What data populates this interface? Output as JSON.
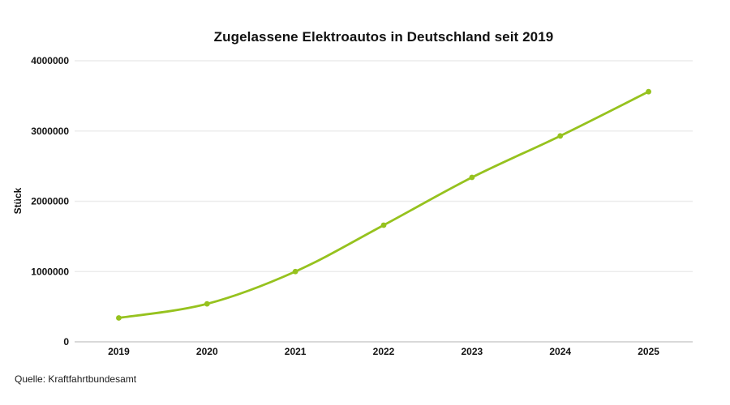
{
  "chart_data": {
    "type": "line",
    "title": "Zugelassene Elektroautos in Deutschland seit 2019",
    "ylabel": "Stück",
    "xlabel": "",
    "source": "Quelle: Kraftfahrtbundesamt",
    "categories": [
      "2019",
      "2020",
      "2021",
      "2022",
      "2023",
      "2024",
      "2025"
    ],
    "series": [
      {
        "name": "Zugelassene Elektroautos",
        "values": [
          340000,
          540000,
          1000000,
          1660000,
          2340000,
          2930000,
          3560000
        ]
      }
    ],
    "ylim": [
      0,
      4000000
    ],
    "yticks": [
      0,
      1000000,
      2000000,
      3000000,
      4000000
    ],
    "grid": true,
    "legend": false,
    "marker": "circle",
    "colors": {
      "line": "#96c21e",
      "grid": "#ececec",
      "zero_line": "#d9d9d9",
      "text": "#111111"
    }
  }
}
